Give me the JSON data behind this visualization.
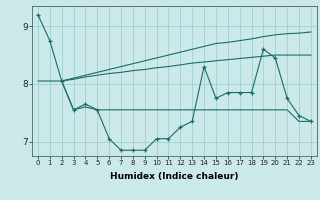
{
  "title": "",
  "xlabel": "Humidex (Indice chaleur)",
  "background_color": "#cce9e9",
  "line_color": "#1a6b6b",
  "grid_color": "#99cccc",
  "xlim": [
    -0.5,
    23.5
  ],
  "ylim": [
    6.75,
    9.35
  ],
  "yticks": [
    7,
    8,
    9
  ],
  "xticks": [
    0,
    1,
    2,
    3,
    4,
    5,
    6,
    7,
    8,
    9,
    10,
    11,
    12,
    13,
    14,
    15,
    16,
    17,
    18,
    19,
    20,
    21,
    22,
    23
  ],
  "series1_x": [
    0,
    1,
    2,
    3,
    4,
    5,
    6,
    7,
    8,
    9,
    10,
    11,
    12,
    13,
    14,
    15,
    16,
    17,
    18,
    19,
    20,
    21,
    22,
    23
  ],
  "series1_y": [
    9.2,
    8.75,
    8.05,
    7.55,
    7.65,
    7.55,
    7.05,
    6.85,
    6.85,
    6.85,
    7.05,
    7.05,
    7.25,
    7.35,
    8.3,
    7.75,
    7.85,
    7.85,
    7.85,
    8.6,
    8.45,
    7.75,
    7.45,
    7.35
  ],
  "series2_x": [
    0,
    1,
    2,
    3,
    4,
    5,
    6,
    7,
    8,
    9,
    10,
    11,
    12,
    13,
    14,
    15,
    16,
    17,
    18,
    19,
    20,
    21,
    22,
    23
  ],
  "series2_y": [
    8.05,
    8.05,
    8.05,
    7.55,
    7.6,
    7.55,
    7.55,
    7.55,
    7.55,
    7.55,
    7.55,
    7.55,
    7.55,
    7.55,
    7.55,
    7.55,
    7.55,
    7.55,
    7.55,
    7.55,
    7.55,
    7.55,
    7.35,
    7.35
  ],
  "series3_x": [
    2,
    3,
    4,
    5,
    6,
    7,
    8,
    9,
    10,
    11,
    12,
    13,
    14,
    15,
    16,
    17,
    18,
    19,
    20,
    21,
    22,
    23
  ],
  "series3_y": [
    8.05,
    8.1,
    8.15,
    8.2,
    8.25,
    8.3,
    8.35,
    8.4,
    8.45,
    8.5,
    8.55,
    8.6,
    8.65,
    8.7,
    8.72,
    8.75,
    8.78,
    8.82,
    8.85,
    8.87,
    8.88,
    8.9
  ],
  "series4_x": [
    2,
    3,
    4,
    5,
    6,
    7,
    8,
    9,
    10,
    11,
    12,
    13,
    14,
    15,
    16,
    17,
    18,
    19,
    20,
    21,
    22,
    23
  ],
  "series4_y": [
    8.05,
    8.08,
    8.12,
    8.15,
    8.18,
    8.2,
    8.23,
    8.25,
    8.28,
    8.3,
    8.33,
    8.36,
    8.38,
    8.4,
    8.42,
    8.44,
    8.46,
    8.48,
    8.5,
    8.5,
    8.5,
    8.5
  ]
}
